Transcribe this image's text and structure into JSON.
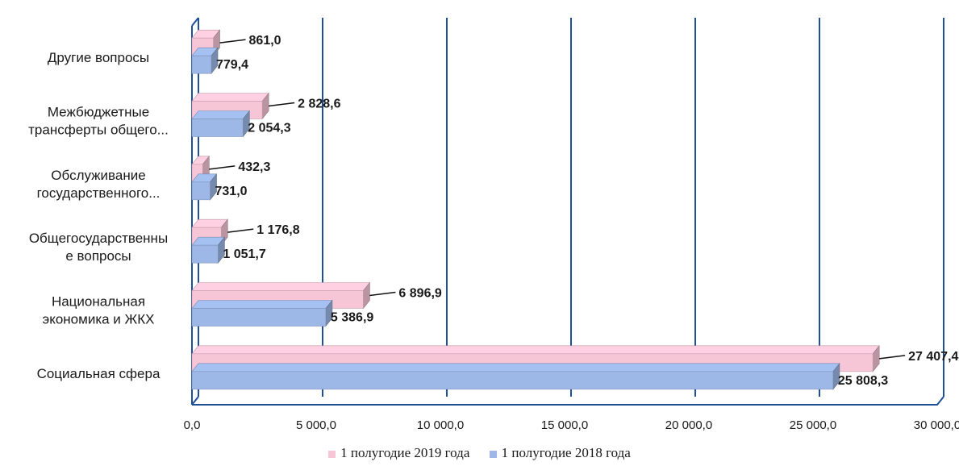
{
  "chart_data": {
    "type": "bar",
    "orientation": "horizontal",
    "categories": [
      "Другие вопросы",
      "Межбюджетные трансферты общего...",
      "Обслуживание государственного...",
      "Общегосударственные вопросы",
      "Национальная экономика и ЖКХ",
      "Социальная сфера"
    ],
    "category_label_lines": [
      [
        "Другие вопросы"
      ],
      [
        "Межбюджетные",
        "трансферты общего..."
      ],
      [
        "Обслуживание",
        "государственного..."
      ],
      [
        "Общегосударственны",
        "е вопросы"
      ],
      [
        "Национальная",
        "экономика и ЖКХ"
      ],
      [
        "Социальная сфера"
      ]
    ],
    "series": [
      {
        "name": "1 полугодие 2019 года",
        "color": "#f7c6d6",
        "values": [
          861.0,
          2828.6,
          432.3,
          1176.8,
          6896.9,
          27407.4
        ],
        "labels": [
          "861,0",
          "2 828,6",
          "432,3",
          "1 176,8",
          "6 896,9",
          "27 407,4"
        ]
      },
      {
        "name": "1 полугодие 2018 года",
        "color": "#9db8e6",
        "values": [
          779.4,
          2054.3,
          731.0,
          1051.7,
          5386.9,
          25808.3
        ],
        "labels": [
          "779,4",
          "2 054,3",
          "731,0",
          "1 051,7",
          "5 386,9",
          "25 808,3"
        ]
      }
    ],
    "x_ticks": [
      0,
      5000,
      10000,
      15000,
      20000,
      25000,
      30000
    ],
    "x_tick_labels": [
      "0,0",
      "5 000,0",
      "10 000,0",
      "15 000,0",
      "20 000,0",
      "25 000,0",
      "30 000,0"
    ],
    "xlim": [
      0,
      30000
    ],
    "grid": true,
    "legend_position": "bottom",
    "gridline_color": "#1f4e9a"
  }
}
